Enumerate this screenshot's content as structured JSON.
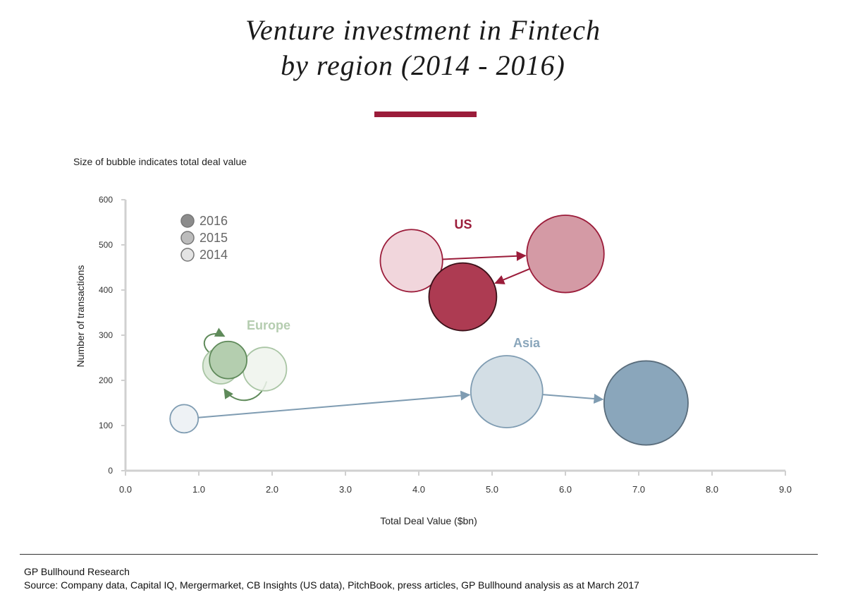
{
  "header": {
    "title_line1": "Venture investment in Fintech",
    "title_line2": "by region (2014 - 2016)",
    "note": "Size of bubble indicates total deal value"
  },
  "footer": {
    "line1": "GP Bullhound Research",
    "line2": "Source: Company data, Capital IQ, Mergermarket, CB Insights (US data), PitchBook, press articles, GP Bullhound analysis as at March 2017"
  },
  "chart_data": {
    "type": "scatter",
    "subtype": "bubble",
    "xlabel": "Total Deal Value ($bn)",
    "ylabel": "Number of transactions",
    "xlim": [
      0,
      9
    ],
    "ylim": [
      0,
      600
    ],
    "xticks": [
      "0.0",
      "1.0",
      "2.0",
      "3.0",
      "4.0",
      "5.0",
      "6.0",
      "7.0",
      "8.0",
      "9.0"
    ],
    "yticks": [
      "0",
      "100",
      "200",
      "300",
      "400",
      "500",
      "600"
    ],
    "grid": false,
    "legend": {
      "placement": "top-left",
      "entries": [
        "2016",
        "2015",
        "2014"
      ],
      "colors": [
        "#8c8c8c",
        "#bcbcbc",
        "#e4e4e4"
      ]
    },
    "series": [
      {
        "name": "US",
        "label_color": "#9b1c3a",
        "stroke": "#9b1c3a",
        "points": [
          {
            "year": "2014",
            "x": 3.9,
            "y": 465,
            "fill": "#f1d6dc"
          },
          {
            "year": "2015",
            "x": 6.0,
            "y": 480,
            "fill": "#d49aa5"
          },
          {
            "year": "2016",
            "x": 4.6,
            "y": 385,
            "fill": "#ad3b52"
          }
        ]
      },
      {
        "name": "Europe",
        "label_color": "#b5cdb0",
        "stroke": "#5f8a5a",
        "points": [
          {
            "year": "2014",
            "x": 1.9,
            "y": 225,
            "fill": "#eef3ec"
          },
          {
            "year": "2015",
            "x": 1.3,
            "y": 232,
            "fill": "#d6e5d2"
          },
          {
            "year": "2016",
            "x": 1.4,
            "y": 245,
            "fill": "#b4ceaf"
          }
        ]
      },
      {
        "name": "Asia",
        "label_color": "#8aa6bb",
        "stroke": "#7f9cb2",
        "points": [
          {
            "year": "2014",
            "x": 0.8,
            "y": 115,
            "fill": "#eef2f5"
          },
          {
            "year": "2015",
            "x": 5.2,
            "y": 175,
            "fill": "#d3dee5"
          },
          {
            "year": "2016",
            "x": 7.1,
            "y": 150,
            "fill": "#8aa6bb"
          }
        ]
      }
    ]
  }
}
